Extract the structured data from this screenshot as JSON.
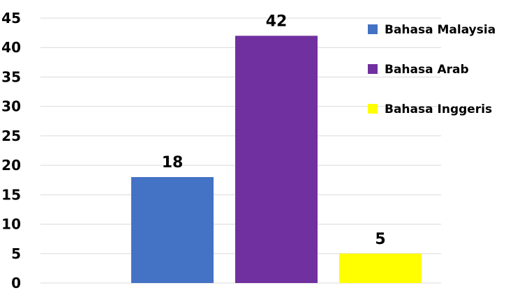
{
  "chart_data": {
    "type": "bar",
    "categories": [
      "Bahasa Malaysia",
      "Bahasa Arab",
      "Bahasa Inggeris"
    ],
    "values": [
      18,
      42,
      5
    ],
    "colors": [
      "#4472c4",
      "#7030a0",
      "#ffff00"
    ],
    "ylim": [
      0,
      45
    ],
    "yticks": [
      0,
      5,
      10,
      15,
      20,
      25,
      30,
      35,
      40,
      45
    ],
    "grid": true,
    "legend": {
      "placement": "top-right",
      "entries": [
        "Bahasa Malaysia",
        "Bahasa Arab",
        "Bahasa Inggeris"
      ]
    }
  }
}
